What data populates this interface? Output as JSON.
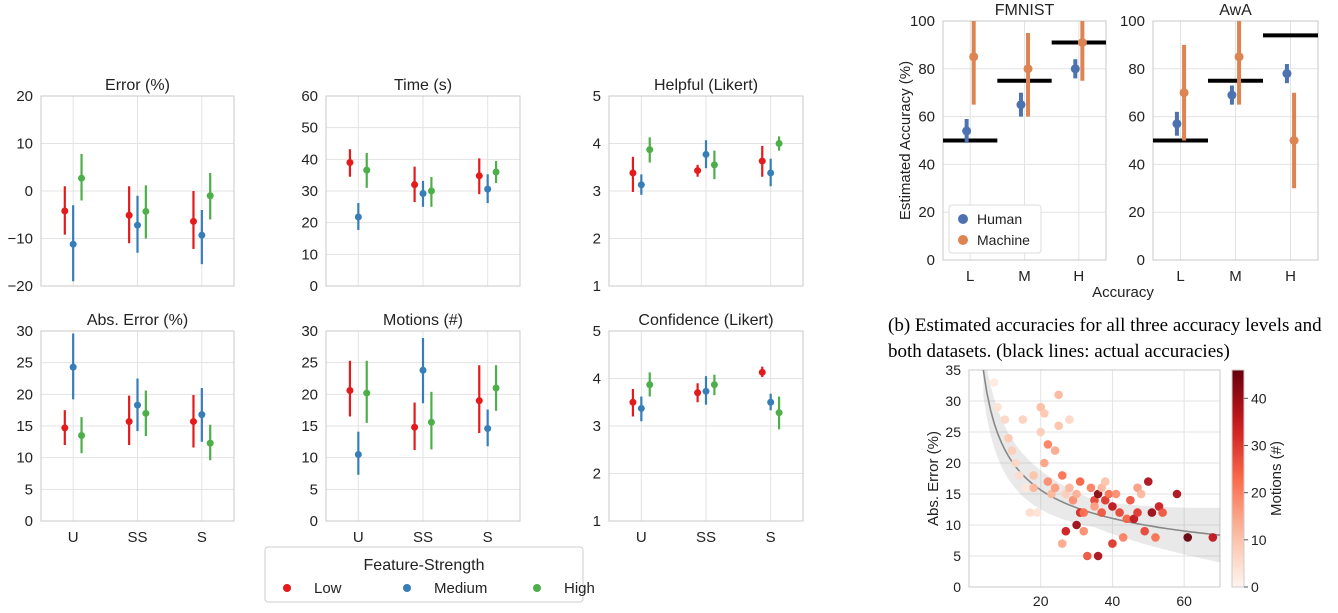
{
  "colors": {
    "low": "#e41a1c",
    "medium": "#377eb8",
    "high": "#4daf4a",
    "human": "#4c72b0",
    "machine": "#dd8452",
    "actual": "#000000",
    "grid": "#e3e3e3",
    "spine": "#c8c8c8"
  },
  "legend_a": {
    "title": "Feature-Strength",
    "items": [
      {
        "label": "Low",
        "color_key": "low"
      },
      {
        "label": "Medium",
        "color_key": "medium"
      },
      {
        "label": "High",
        "color_key": "high"
      }
    ]
  },
  "caption_b": "(b) Estimated accuracies for all three accuracy levels and both datasets. (black lines: actual accuracies)",
  "chart_data": [
    {
      "id": "error",
      "type": "pointplot",
      "title": "Error (%)",
      "categories": [
        "U",
        "SS",
        "S"
      ],
      "ylim": [
        -20,
        20
      ],
      "yticks": [
        -20,
        -10,
        0,
        10,
        20
      ],
      "ytick_labels": [
        "−20",
        "−10",
        "0",
        "10",
        "20"
      ],
      "show_xticklabels": false,
      "series": [
        {
          "name": "Low",
          "color_key": "low",
          "values": [
            -4.2,
            -5.1,
            -6.4
          ],
          "ci": [
            [
              -9.2,
              1.0
            ],
            [
              -11.0,
              1.0
            ],
            [
              -12.2,
              0.0
            ]
          ]
        },
        {
          "name": "Medium",
          "color_key": "medium",
          "values": [
            -11.2,
            -7.2,
            -9.3
          ],
          "ci": [
            [
              -19.0,
              -3.0
            ],
            [
              -13.0,
              -1.0
            ],
            [
              -15.4,
              -4.0
            ]
          ]
        },
        {
          "name": "High",
          "color_key": "high",
          "values": [
            2.7,
            -4.3,
            -1.0
          ],
          "ci": [
            [
              -2.0,
              7.8
            ],
            [
              -10.0,
              1.2
            ],
            [
              -6.0,
              3.8
            ]
          ]
        }
      ]
    },
    {
      "id": "time",
      "type": "pointplot",
      "title": "Time (s)",
      "categories": [
        "U",
        "SS",
        "S"
      ],
      "ylim": [
        0,
        60
      ],
      "yticks": [
        0,
        10,
        20,
        30,
        40,
        50,
        60
      ],
      "ytick_labels": [
        "0",
        "10",
        "20",
        "30",
        "40",
        "50",
        "60"
      ],
      "show_xticklabels": false,
      "series": [
        {
          "name": "Low",
          "color_key": "low",
          "values": [
            39.0,
            32.0,
            34.8
          ],
          "ci": [
            [
              34.5,
              43.2
            ],
            [
              26.5,
              37.7
            ],
            [
              29.0,
              40.3
            ]
          ]
        },
        {
          "name": "Medium",
          "color_key": "medium",
          "values": [
            21.8,
            29.2,
            30.6
          ],
          "ci": [
            [
              17.7,
              26.2
            ],
            [
              25.0,
              33.2
            ],
            [
              26.2,
              35.3
            ]
          ]
        },
        {
          "name": "High",
          "color_key": "high",
          "values": [
            36.6,
            30.0,
            36.0
          ],
          "ci": [
            [
              31.0,
              42.0
            ],
            [
              25.0,
              34.4
            ],
            [
              32.5,
              39.5
            ]
          ]
        }
      ]
    },
    {
      "id": "helpful",
      "type": "pointplot",
      "title": "Helpful (Likert)",
      "categories": [
        "U",
        "SS",
        "S"
      ],
      "ylim": [
        1,
        5
      ],
      "yticks": [
        1,
        2,
        3,
        4,
        5
      ],
      "ytick_labels": [
        "1",
        "2",
        "3",
        "4",
        "5"
      ],
      "show_xticklabels": false,
      "series": [
        {
          "name": "Low",
          "color_key": "low",
          "values": [
            3.38,
            3.43,
            3.63
          ],
          "ci": [
            [
              2.98,
              3.72
            ],
            [
              3.3,
              3.55
            ],
            [
              3.3,
              3.95
            ]
          ]
        },
        {
          "name": "Medium",
          "color_key": "medium",
          "values": [
            3.13,
            3.77,
            3.38
          ],
          "ci": [
            [
              2.92,
              3.35
            ],
            [
              3.48,
              4.07
            ],
            [
              3.1,
              3.68
            ]
          ]
        },
        {
          "name": "High",
          "color_key": "high",
          "values": [
            3.87,
            3.55,
            4.0
          ],
          "ci": [
            [
              3.6,
              4.13
            ],
            [
              3.25,
              3.85
            ],
            [
              3.85,
              4.15
            ]
          ]
        }
      ]
    },
    {
      "id": "abs_error",
      "type": "pointplot",
      "title": "Abs. Error (%)",
      "categories": [
        "U",
        "SS",
        "S"
      ],
      "ylim": [
        0,
        30
      ],
      "yticks": [
        0,
        5,
        10,
        15,
        20,
        25,
        30
      ],
      "ytick_labels": [
        "0",
        "5",
        "10",
        "15",
        "20",
        "25",
        "30"
      ],
      "show_xticklabels": true,
      "series": [
        {
          "name": "Low",
          "color_key": "low",
          "values": [
            14.7,
            15.7,
            15.7
          ],
          "ci": [
            [
              12.0,
              17.5
            ],
            [
              12.0,
              19.8
            ],
            [
              11.6,
              19.9
            ]
          ]
        },
        {
          "name": "Medium",
          "color_key": "medium",
          "values": [
            24.3,
            18.3,
            16.8
          ],
          "ci": [
            [
              19.2,
              29.6
            ],
            [
              14.2,
              22.5
            ],
            [
              12.5,
              21.0
            ]
          ]
        },
        {
          "name": "High",
          "color_key": "high",
          "values": [
            13.5,
            17.0,
            12.3
          ],
          "ci": [
            [
              10.7,
              16.4
            ],
            [
              13.4,
              20.6
            ],
            [
              9.6,
              15.2
            ]
          ]
        }
      ]
    },
    {
      "id": "motions",
      "type": "pointplot",
      "title": "Motions (#)",
      "categories": [
        "U",
        "SS",
        "S"
      ],
      "ylim": [
        0,
        30
      ],
      "yticks": [
        0,
        5,
        10,
        15,
        20,
        25,
        30
      ],
      "ytick_labels": [
        "0",
        "5",
        "10",
        "15",
        "20",
        "25",
        "30"
      ],
      "show_xticklabels": true,
      "series": [
        {
          "name": "Low",
          "color_key": "low",
          "values": [
            20.6,
            14.8,
            19.0
          ],
          "ci": [
            [
              16.5,
              25.3
            ],
            [
              11.2,
              18.7
            ],
            [
              13.9,
              24.6
            ]
          ]
        },
        {
          "name": "Medium",
          "color_key": "medium",
          "values": [
            10.5,
            23.8,
            14.6
          ],
          "ci": [
            [
              7.3,
              14.1
            ],
            [
              18.6,
              28.9
            ],
            [
              11.8,
              17.6
            ]
          ]
        },
        {
          "name": "High",
          "color_key": "high",
          "values": [
            20.2,
            15.6,
            21.0
          ],
          "ci": [
            [
              15.5,
              25.3
            ],
            [
              11.3,
              20.4
            ],
            [
              17.4,
              24.6
            ]
          ]
        }
      ]
    },
    {
      "id": "confidence",
      "type": "pointplot",
      "title": "Confidence (Likert)",
      "categories": [
        "U",
        "SS",
        "S"
      ],
      "ylim": [
        1,
        5
      ],
      "yticks": [
        1,
        2,
        3,
        4,
        5
      ],
      "ytick_labels": [
        "1",
        "2",
        "3",
        "4",
        "5"
      ],
      "show_xticklabels": true,
      "series": [
        {
          "name": "Low",
          "color_key": "low",
          "values": [
            3.5,
            3.7,
            4.13
          ],
          "ci": [
            [
              3.2,
              3.78
            ],
            [
              3.5,
              3.9
            ],
            [
              4.03,
              4.25
            ]
          ]
        },
        {
          "name": "Medium",
          "color_key": "medium",
          "values": [
            3.37,
            3.73,
            3.5
          ],
          "ci": [
            [
              3.1,
              3.62
            ],
            [
              3.45,
              4.05
            ],
            [
              3.33,
              3.68
            ]
          ]
        },
        {
          "name": "High",
          "color_key": "high",
          "values": [
            3.87,
            3.87,
            3.28
          ],
          "ci": [
            [
              3.62,
              4.13
            ],
            [
              3.65,
              4.08
            ],
            [
              2.93,
              3.62
            ]
          ]
        }
      ]
    },
    {
      "id": "fmnist",
      "type": "pointplot",
      "title": "FMNIST",
      "ylabel": "Estimated Accuracy (%)",
      "categories": [
        "L",
        "M",
        "H"
      ],
      "ylim": [
        0,
        100
      ],
      "yticks": [
        0,
        20,
        40,
        60,
        80,
        100
      ],
      "ytick_labels": [
        "0",
        "20",
        "40",
        "60",
        "80",
        "100"
      ],
      "show_yticklabels": true,
      "actual_accuracy": [
        50,
        75,
        91
      ],
      "legend": {
        "position": "lower-left",
        "items": [
          {
            "label": "Human",
            "color_key": "human"
          },
          {
            "label": "Machine",
            "color_key": "machine"
          }
        ]
      },
      "series": [
        {
          "name": "Human",
          "color_key": "human",
          "values": [
            54,
            65,
            80
          ],
          "ci": [
            [
              49,
              59
            ],
            [
              60,
              70
            ],
            [
              76,
              84
            ]
          ]
        },
        {
          "name": "Machine",
          "color_key": "machine",
          "values": [
            85,
            80,
            91
          ],
          "ci": [
            [
              65,
              100
            ],
            [
              60,
              95
            ],
            [
              75,
              100
            ]
          ]
        }
      ]
    },
    {
      "id": "awa",
      "type": "pointplot",
      "title": "AwA",
      "categories": [
        "L",
        "M",
        "H"
      ],
      "ylim": [
        0,
        100
      ],
      "yticks": [
        0,
        20,
        40,
        60,
        80,
        100
      ],
      "ytick_labels": [
        "0",
        "20",
        "40",
        "60",
        "80",
        "100"
      ],
      "show_yticklabels": true,
      "actual_accuracy": [
        50,
        75,
        94
      ],
      "series": [
        {
          "name": "Human",
          "color_key": "human",
          "values": [
            57,
            69,
            78
          ],
          "ci": [
            [
              52,
              62
            ],
            [
              65,
              73
            ],
            [
              74,
              82
            ]
          ]
        },
        {
          "name": "Machine",
          "color_key": "machine",
          "values": [
            70,
            85,
            50
          ],
          "ci": [
            [
              50,
              90
            ],
            [
              65,
              100
            ],
            [
              30,
              70
            ]
          ]
        }
      ]
    },
    {
      "id": "scatter",
      "type": "scatter",
      "xlabel": "",
      "ylabel": "Abs. Error (%)",
      "xlim": [
        0,
        70
      ],
      "ylim": [
        0,
        35
      ],
      "xticks": [
        20,
        40,
        60
      ],
      "yticks": [
        0,
        5,
        10,
        15,
        20,
        25,
        30,
        35
      ],
      "colorbar": {
        "label": "Motions (#)",
        "range": [
          0,
          46
        ],
        "ticks": [
          0,
          10,
          20,
          30,
          40
        ],
        "colormap": "Reds"
      },
      "fit_curve": {
        "type": "power",
        "a": 70,
        "b": -0.5,
        "band": 2.2
      },
      "points": [
        [
          7,
          33,
          2
        ],
        [
          8,
          29,
          4
        ],
        [
          10,
          27,
          6
        ],
        [
          11,
          24,
          9
        ],
        [
          12,
          22,
          8
        ],
        [
          13,
          20,
          6
        ],
        [
          14,
          18,
          5
        ],
        [
          15,
          27,
          7
        ],
        [
          16,
          16,
          3
        ],
        [
          17,
          12,
          5
        ],
        [
          18,
          18,
          10
        ],
        [
          18,
          16,
          12
        ],
        [
          19,
          12,
          4
        ],
        [
          20,
          25,
          8
        ],
        [
          20,
          29,
          11
        ],
        [
          21,
          28,
          9
        ],
        [
          21,
          20,
          15
        ],
        [
          22,
          17,
          18
        ],
        [
          22,
          23,
          20
        ],
        [
          23,
          15,
          12
        ],
        [
          24,
          22,
          14
        ],
        [
          24,
          16,
          16
        ],
        [
          25,
          31,
          12
        ],
        [
          25,
          26,
          10
        ],
        [
          26,
          18,
          22
        ],
        [
          26,
          7,
          14
        ],
        [
          27,
          15,
          8
        ],
        [
          27,
          9,
          34
        ],
        [
          28,
          27,
          6
        ],
        [
          28,
          16,
          12
        ],
        [
          29,
          14,
          18
        ],
        [
          30,
          15,
          13
        ],
        [
          30,
          10,
          40
        ],
        [
          31,
          17,
          24
        ],
        [
          31,
          12,
          32
        ],
        [
          32,
          9,
          18
        ],
        [
          32,
          12,
          22
        ],
        [
          33,
          5,
          26
        ],
        [
          34,
          16,
          20
        ],
        [
          35,
          14,
          28
        ],
        [
          35,
          13,
          16
        ],
        [
          36,
          5,
          38
        ],
        [
          36,
          15,
          42
        ],
        [
          37,
          12,
          26
        ],
        [
          37,
          16,
          12
        ],
        [
          38,
          14,
          30
        ],
        [
          38,
          17,
          10
        ],
        [
          39,
          15,
          22
        ],
        [
          40,
          7,
          30
        ],
        [
          40,
          13,
          36
        ],
        [
          41,
          15,
          18
        ],
        [
          42,
          12,
          28
        ],
        [
          43,
          8,
          20
        ],
        [
          44,
          11,
          24
        ],
        [
          45,
          14,
          26
        ],
        [
          46,
          11,
          36
        ],
        [
          47,
          16,
          16
        ],
        [
          47,
          12,
          30
        ],
        [
          48,
          15,
          12
        ],
        [
          49,
          9,
          28
        ],
        [
          50,
          17,
          38
        ],
        [
          51,
          12,
          40
        ],
        [
          52,
          8,
          22
        ],
        [
          53,
          13,
          34
        ],
        [
          54,
          12,
          26
        ],
        [
          58,
          15,
          38
        ],
        [
          61,
          8,
          46
        ],
        [
          68,
          8,
          36
        ]
      ]
    }
  ]
}
